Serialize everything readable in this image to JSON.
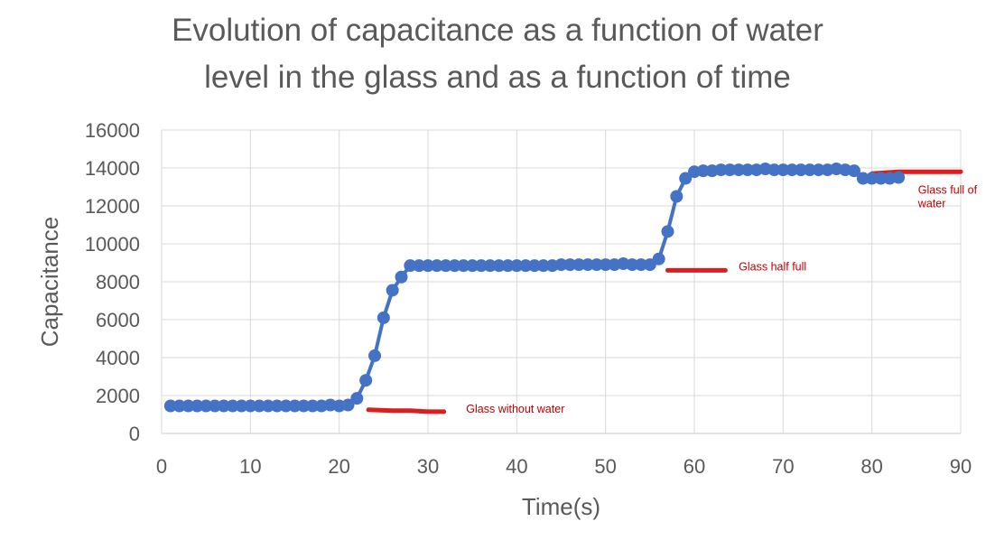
{
  "chart_data": {
    "type": "line",
    "title_lines": [
      "Evolution of capacitance as a function of water",
      "level in the glass and as a function of time"
    ],
    "xlabel": "Time(s)",
    "ylabel": "Capacitance",
    "xlim": [
      0,
      90
    ],
    "ylim": [
      0,
      16000
    ],
    "xticks": [
      0,
      10,
      20,
      30,
      40,
      50,
      60,
      70,
      80,
      90
    ],
    "yticks": [
      0,
      2000,
      4000,
      6000,
      8000,
      10000,
      12000,
      14000,
      16000
    ],
    "grid": true,
    "legend": "none",
    "series_color": "#4472c4",
    "annotation_color": "#dc1e1e",
    "series": [
      {
        "x": [
          1,
          2,
          3,
          4,
          5,
          6,
          7,
          8,
          9,
          10,
          11,
          12,
          13,
          14,
          15,
          16,
          17,
          18,
          19,
          20,
          21,
          22,
          23,
          24,
          25,
          26,
          27,
          28,
          29,
          30,
          31,
          32,
          33,
          34,
          35,
          36,
          37,
          38,
          39,
          40,
          41,
          42,
          43,
          44,
          45,
          46,
          47,
          48,
          49,
          50,
          51,
          52,
          53,
          54,
          55,
          56,
          57,
          58,
          59,
          60,
          61,
          62,
          63,
          64,
          65,
          66,
          67,
          68,
          69,
          70,
          71,
          72,
          73,
          74,
          75,
          76,
          77,
          78,
          79,
          80,
          81,
          82,
          83
        ],
        "y": [
          1450,
          1450,
          1450,
          1450,
          1450,
          1450,
          1450,
          1450,
          1450,
          1450,
          1450,
          1450,
          1450,
          1450,
          1450,
          1450,
          1450,
          1450,
          1500,
          1450,
          1500,
          1850,
          2800,
          4100,
          6100,
          7550,
          8250,
          8850,
          8850,
          8850,
          8850,
          8850,
          8850,
          8850,
          8850,
          8850,
          8850,
          8850,
          8850,
          8850,
          8850,
          8850,
          8850,
          8850,
          8900,
          8900,
          8900,
          8900,
          8900,
          8900,
          8900,
          8950,
          8900,
          8900,
          8900,
          9200,
          10650,
          12500,
          13450,
          13800,
          13850,
          13850,
          13900,
          13900,
          13900,
          13900,
          13900,
          13950,
          13900,
          13900,
          13900,
          13900,
          13900,
          13900,
          13900,
          13950,
          13900,
          13850,
          13450,
          13450,
          13450,
          13450,
          13500
        ]
      }
    ],
    "annotations": [
      {
        "text": "Glass without water",
        "x": 34.3,
        "y": 1100,
        "line": [
          [
            23.3,
            1250
          ],
          [
            26,
            1200
          ],
          [
            28,
            1200
          ],
          [
            30,
            1150
          ],
          [
            31.8,
            1150
          ]
        ]
      },
      {
        "text": "Glass half full",
        "x": 65,
        "y": 8600,
        "line": [
          [
            57,
            8600
          ],
          [
            63.5,
            8600
          ]
        ]
      },
      {
        "text": [
          "Glass full of",
          "water"
        ],
        "x": 85.2,
        "y": 12650,
        "line": [
          [
            80,
            13700
          ],
          [
            83,
            13800
          ],
          [
            90,
            13800
          ]
        ]
      }
    ]
  }
}
